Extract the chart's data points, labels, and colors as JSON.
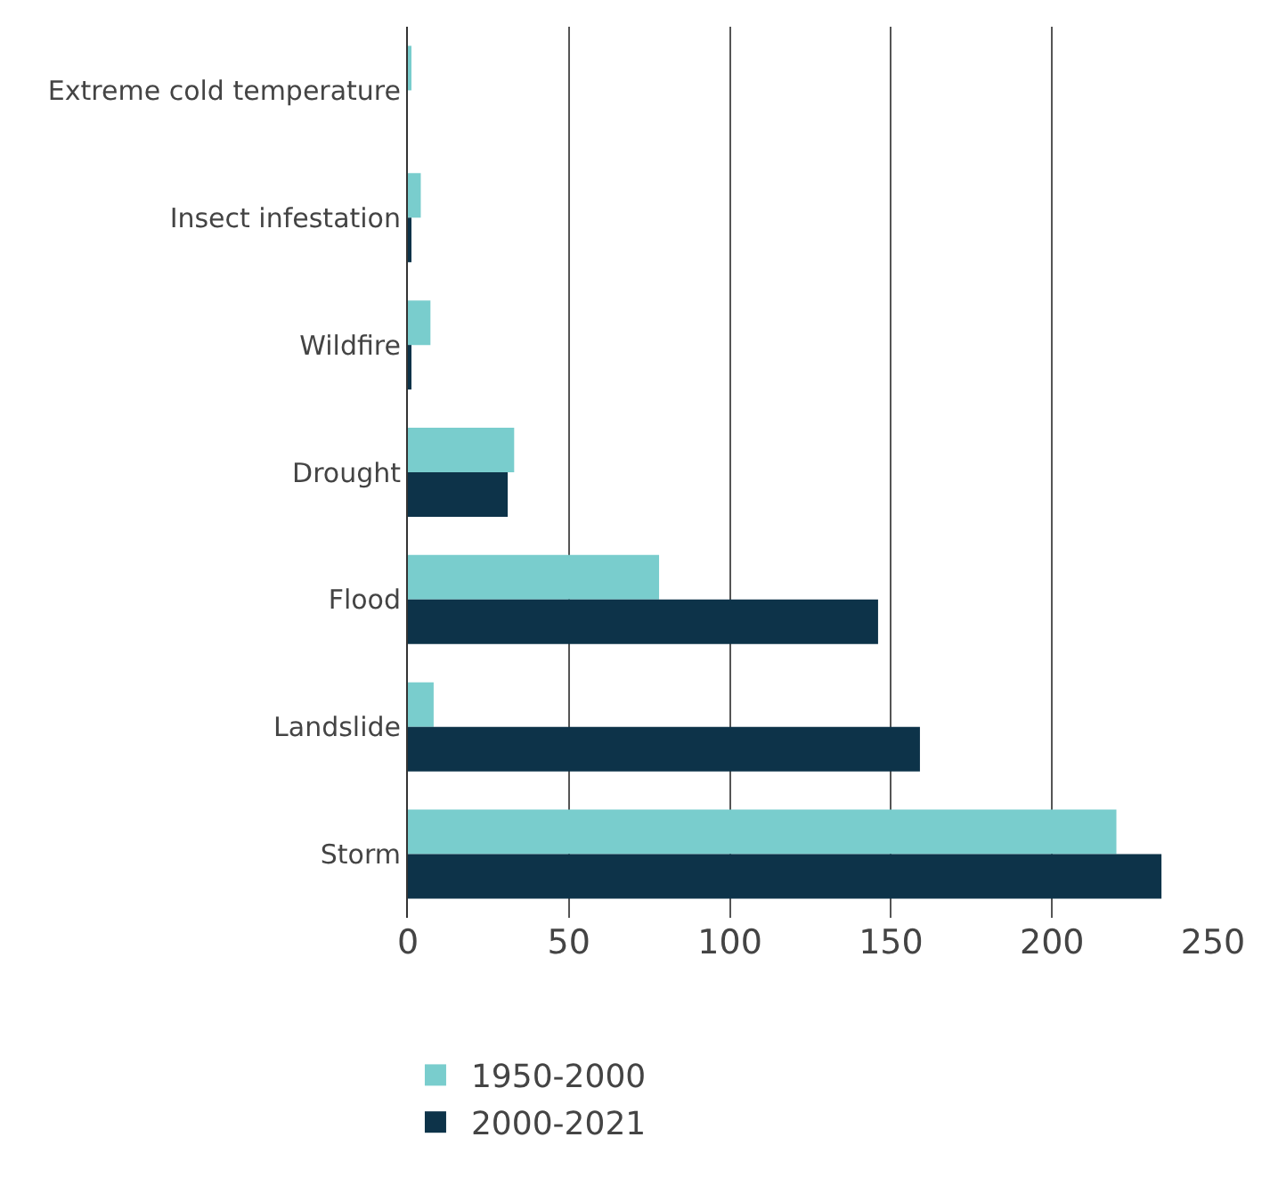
{
  "chart_data": {
    "type": "bar",
    "orientation": "horizontal",
    "categories": [
      "Extreme cold temperature",
      "Insect infestation",
      "Wildfire",
      "Drought",
      "Flood",
      "Landslide",
      "Storm"
    ],
    "series": [
      {
        "name": "1950-2000",
        "color": "#79cdcd",
        "values": [
          1,
          4,
          7,
          33,
          78,
          8,
          220
        ]
      },
      {
        "name": "2000-2021",
        "color": "#0d3349",
        "values": [
          0,
          1,
          1,
          31,
          146,
          159,
          234
        ]
      }
    ],
    "xlim": [
      0,
      250
    ],
    "xticks": [
      0,
      50,
      100,
      150,
      200,
      250
    ],
    "grid": "x",
    "legend": "bottom left"
  }
}
